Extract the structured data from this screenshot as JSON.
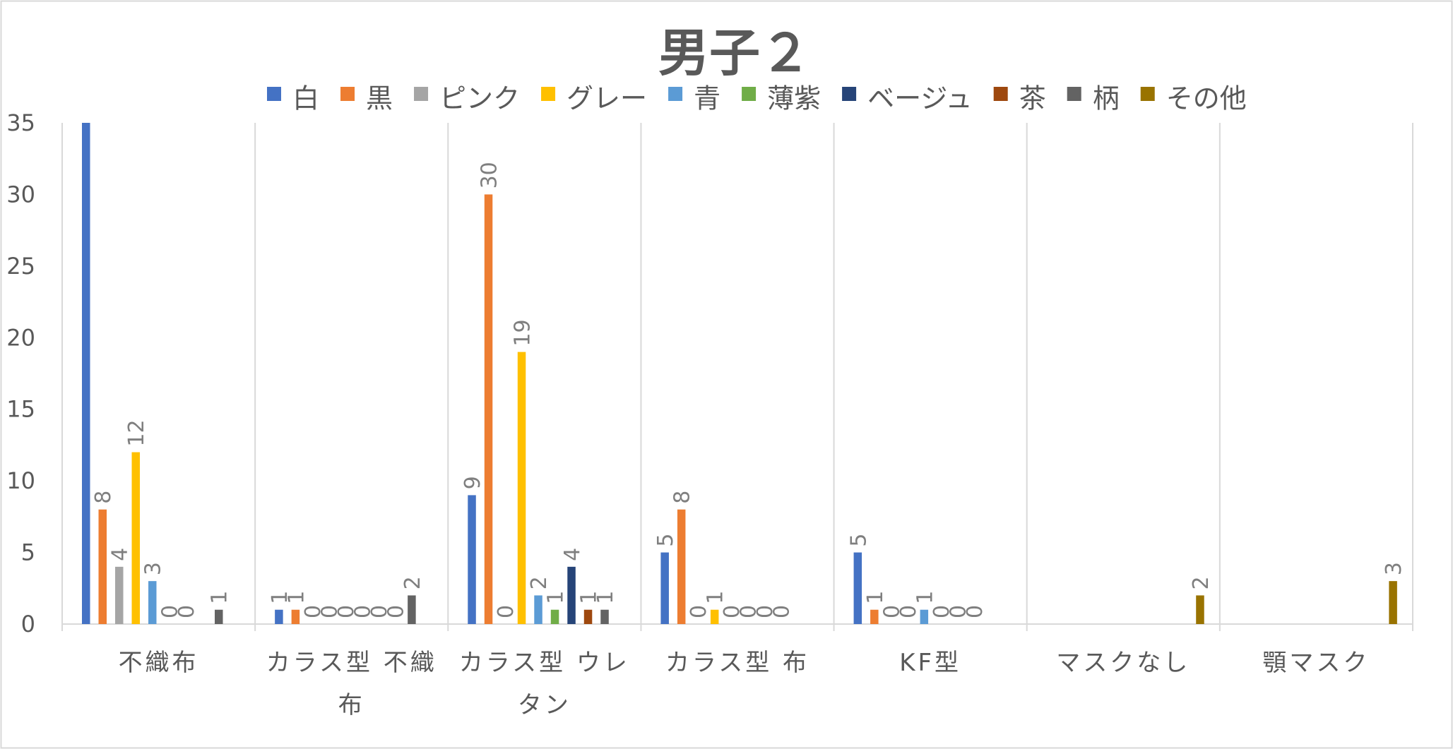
{
  "chart_data": {
    "type": "bar",
    "title": "男子２",
    "xlabel": "",
    "ylabel": "",
    "ylim": [
      0,
      35
    ],
    "yticks": [
      0,
      5,
      10,
      15,
      20,
      25,
      30,
      35
    ],
    "grid": "vertical category separators",
    "legend_position": "top",
    "categories": [
      [
        "不織布"
      ],
      [
        "カラス型 不織",
        "布"
      ],
      [
        "カラス型 ウレ",
        "タン"
      ],
      [
        "カラス型 布"
      ],
      [
        "KF型"
      ],
      [
        "マスクなし"
      ],
      [
        "顎マスク"
      ]
    ],
    "series": [
      {
        "name": "白",
        "color": "#4472C4",
        "values": [
          35,
          1,
          9,
          5,
          5,
          null,
          null
        ],
        "labels": [
          "",
          "1",
          "9",
          "5",
          "5",
          "",
          ""
        ]
      },
      {
        "name": "黒",
        "color": "#ED7D31",
        "values": [
          8,
          1,
          30,
          8,
          1,
          null,
          null
        ],
        "labels": [
          "8",
          "1",
          "30",
          "8",
          "1",
          "",
          ""
        ]
      },
      {
        "name": "ピンク",
        "color": "#A5A5A5",
        "values": [
          4,
          0,
          0,
          0,
          0,
          null,
          null
        ],
        "labels": [
          "4",
          "0",
          "0",
          "0",
          "0",
          "",
          ""
        ]
      },
      {
        "name": "グレー",
        "color": "#FFC000",
        "values": [
          12,
          0,
          19,
          1,
          0,
          null,
          null
        ],
        "labels": [
          "12",
          "0",
          "19",
          "1",
          "0",
          "",
          ""
        ]
      },
      {
        "name": "青",
        "color": "#5B9BD5",
        "values": [
          3,
          0,
          2,
          0,
          1,
          null,
          null
        ],
        "labels": [
          "3",
          "0",
          "2",
          "0",
          "1",
          "",
          ""
        ]
      },
      {
        "name": "薄紫",
        "color": "#70AD47",
        "values": [
          0,
          0,
          1,
          0,
          0,
          null,
          null
        ],
        "labels": [
          "0",
          "0",
          "1",
          "0",
          "0",
          "",
          ""
        ]
      },
      {
        "name": "ベージュ",
        "color": "#264478",
        "values": [
          0,
          0,
          4,
          0,
          0,
          null,
          null
        ],
        "labels": [
          "0",
          "0",
          "4",
          "0",
          "0",
          "",
          ""
        ]
      },
      {
        "name": "茶",
        "color": "#9E480E",
        "values": [
          null,
          0,
          1,
          0,
          0,
          null,
          null
        ],
        "labels": [
          "",
          "0",
          "1",
          "0",
          "0",
          "",
          ""
        ]
      },
      {
        "name": "柄",
        "color": "#636363",
        "values": [
          1,
          2,
          1,
          null,
          null,
          null,
          null
        ],
        "labels": [
          "1",
          "2",
          "1",
          "",
          "",
          "",
          ""
        ]
      },
      {
        "name": "その他",
        "color": "#997300",
        "values": [
          null,
          null,
          null,
          null,
          null,
          2,
          3
        ],
        "labels": [
          "",
          "",
          "",
          "",
          "",
          "2",
          "3"
        ]
      }
    ]
  }
}
